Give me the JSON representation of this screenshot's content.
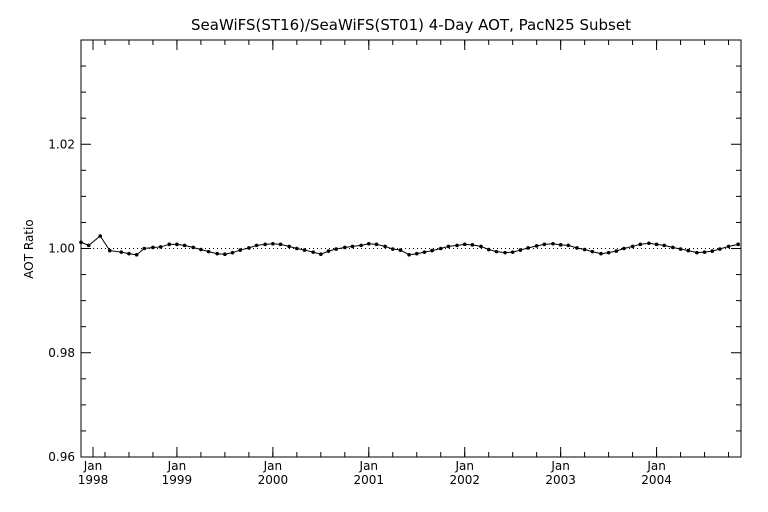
{
  "chart_data": {
    "type": "line",
    "title": "SeaWiFS(ST16)/SeaWiFS(ST01) 4-Day AOT, PacN25 Subset",
    "xlabel": "",
    "ylabel": "AOT Ratio",
    "xlim": [
      1998.0,
      2004.88
    ],
    "ylim": [
      0.96,
      1.04
    ],
    "y_ticks": [
      "0.96",
      "0.98",
      "1.00",
      "1.02"
    ],
    "y_tick_values": [
      0.96,
      0.98,
      1.0,
      1.02
    ],
    "x_ticks": [
      {
        "top": "Jan",
        "bottom": "1998",
        "value": 1998.125
      },
      {
        "top": "Jan",
        "bottom": "1999",
        "value": 1999.0
      },
      {
        "top": "Jan",
        "bottom": "2000",
        "value": 2000.0
      },
      {
        "top": "Jan",
        "bottom": "2001",
        "value": 2001.0
      },
      {
        "top": "Jan",
        "bottom": "2002",
        "value": 2002.0
      },
      {
        "top": "Jan",
        "bottom": "2003",
        "value": 2003.0
      },
      {
        "top": "Jan",
        "bottom": "2004",
        "value": 2004.0
      }
    ],
    "reference_line": 1.0,
    "grid": false,
    "series": [
      {
        "x": [
          1998.0,
          1998.08,
          1998.2,
          1998.3,
          1998.42,
          1998.5,
          1998.58,
          1998.66,
          1998.75,
          1998.83,
          1998.92,
          1999.0,
          1999.08,
          1999.17,
          1999.25,
          1999.33,
          1999.42,
          1999.5,
          1999.58,
          1999.66,
          1999.75,
          1999.83,
          1999.92,
          2000.0,
          2000.08,
          2000.17,
          2000.25,
          2000.33,
          2000.42,
          2000.5,
          2000.58,
          2000.66,
          2000.75,
          2000.83,
          2000.92,
          2001.0,
          2001.08,
          2001.17,
          2001.25,
          2001.33,
          2001.42,
          2001.5,
          2001.58,
          2001.66,
          2001.75,
          2001.83,
          2001.92,
          2002.0,
          2002.08,
          2002.17,
          2002.25,
          2002.33,
          2002.42,
          2002.5,
          2002.58,
          2002.66,
          2002.75,
          2002.83,
          2002.92,
          2003.0,
          2003.08,
          2003.17,
          2003.25,
          2003.33,
          2003.42,
          2003.5,
          2003.58,
          2003.66,
          2003.75,
          2003.83,
          2003.92,
          2004.0,
          2004.08,
          2004.17,
          2004.25,
          2004.33,
          2004.42,
          2004.5,
          2004.58,
          2004.66,
          2004.75,
          2004.85
        ],
        "y": [
          1.0012,
          1.0006,
          1.0024,
          0.9996,
          0.9993,
          0.999,
          0.9988,
          1.0,
          1.0002,
          1.0003,
          1.0008,
          1.0008,
          1.0006,
          1.0002,
          0.9998,
          0.9994,
          0.999,
          0.9989,
          0.9992,
          0.9997,
          1.0001,
          1.0006,
          1.0008,
          1.0009,
          1.0008,
          1.0004,
          1.0,
          0.9997,
          0.9993,
          0.9989,
          0.9995,
          0.9999,
          1.0002,
          1.0004,
          1.0006,
          1.0009,
          1.0008,
          1.0004,
          0.9999,
          0.9997,
          0.9988,
          0.999,
          0.9993,
          0.9996,
          1.0,
          1.0004,
          1.0006,
          1.0008,
          1.0007,
          1.0004,
          0.9998,
          0.9994,
          0.9992,
          0.9993,
          0.9997,
          1.0001,
          1.0005,
          1.0008,
          1.0009,
          1.0007,
          1.0006,
          1.0001,
          0.9998,
          0.9994,
          0.999,
          0.9992,
          0.9995,
          1.0,
          1.0004,
          1.0008,
          1.001,
          1.0008,
          1.0006,
          1.0002,
          0.9999,
          0.9996,
          0.9992,
          0.9993,
          0.9995,
          0.9999,
          1.0004,
          1.0008
        ]
      }
    ]
  }
}
